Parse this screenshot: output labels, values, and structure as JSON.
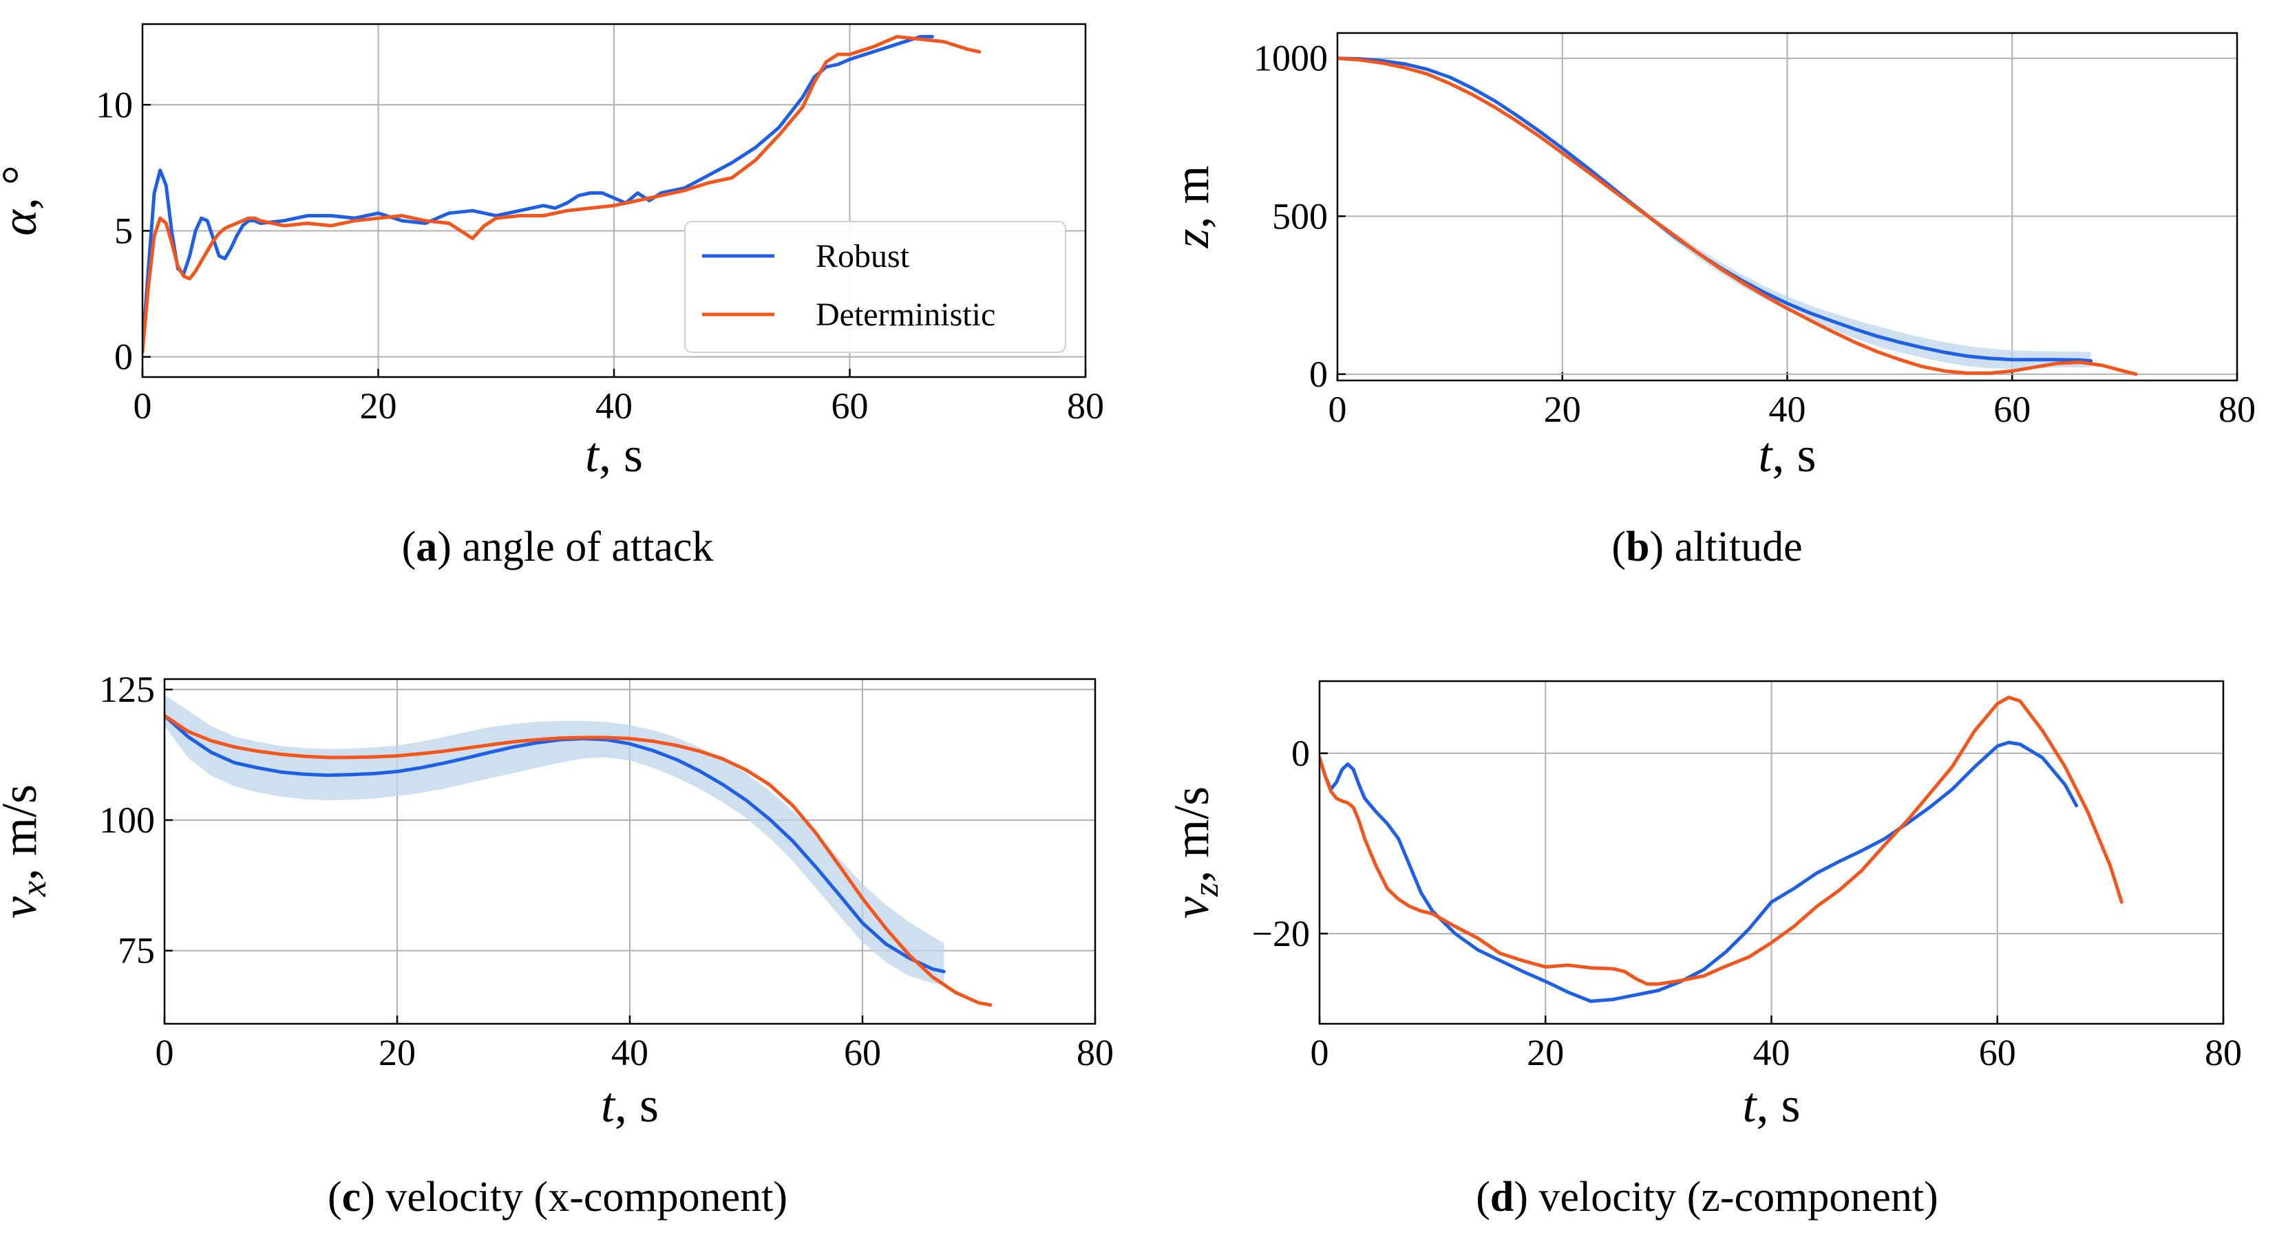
{
  "colors": {
    "robust": "#1f5fe6",
    "deterministic": "#f2561d",
    "band": "#bdd5ea",
    "grid": "#b0b0b0"
  },
  "legend": {
    "robust": "Robust",
    "deterministic": "Deterministic"
  },
  "panels": [
    {
      "id": "a",
      "caption_letter": "a",
      "caption_text": "angle of attack",
      "xlabel_sym": "t",
      "xlabel_unit": ", s",
      "ylabel_sym": "α",
      "ylabel_unit": ", °",
      "xticks": [
        "0",
        "20",
        "40",
        "60",
        "80"
      ],
      "yticks": [
        "0",
        "5",
        "10"
      ],
      "show_legend": true
    },
    {
      "id": "b",
      "caption_letter": "b",
      "caption_text": "altitude",
      "xlabel_sym": "t",
      "xlabel_unit": ", s",
      "ylabel_sym": "z",
      "ylabel_unit": ", m",
      "xticks": [
        "0",
        "20",
        "40",
        "60",
        "80"
      ],
      "yticks": [
        "0",
        "500",
        "1000"
      ],
      "show_legend": false
    },
    {
      "id": "c",
      "caption_letter": "c",
      "caption_text": "velocity (x-component)",
      "xlabel_sym": "t",
      "xlabel_unit": ", s",
      "ylabel_sym": "v",
      "ylabel_sub": "x",
      "ylabel_unit": ", m/s",
      "xticks": [
        "0",
        "20",
        "40",
        "60",
        "80"
      ],
      "yticks": [
        "75",
        "100",
        "125"
      ],
      "show_legend": false
    },
    {
      "id": "d",
      "caption_letter": "d",
      "caption_text": "velocity (z-component)",
      "xlabel_sym": "t",
      "xlabel_unit": ", s",
      "ylabel_sym": "v",
      "ylabel_sub": "z",
      "ylabel_unit": ", m/s",
      "xticks": [
        "0",
        "20",
        "40",
        "60",
        "80"
      ],
      "yticks": [
        "−20",
        "0"
      ],
      "show_legend": false
    }
  ],
  "chart_data": [
    {
      "panel": "a",
      "type": "line",
      "title": "angle of attack",
      "xlabel": "t, s",
      "ylabel": "α, °",
      "xlim": [
        0,
        80
      ],
      "ylim": [
        -0.8,
        13.2
      ],
      "xticks": [
        0,
        20,
        40,
        60,
        80
      ],
      "yticks": [
        0,
        5,
        10
      ],
      "grid": true,
      "legend_position": "lower-right",
      "series": [
        {
          "name": "Robust",
          "x": [
            0,
            0.5,
            1,
            1.5,
            2,
            2.5,
            3,
            3.5,
            4,
            4.5,
            5,
            5.5,
            6,
            6.5,
            7,
            7.5,
            8,
            8.5,
            9,
            9.5,
            10,
            12,
            14,
            16,
            18,
            20,
            22,
            24,
            26,
            28,
            30,
            32,
            34,
            35,
            36,
            37,
            38,
            39,
            40,
            41,
            42,
            43,
            44,
            46,
            48,
            50,
            52,
            54,
            56,
            57,
            58,
            59,
            60,
            62,
            64,
            66,
            67
          ],
          "y": [
            0.3,
            3.5,
            6.5,
            7.4,
            6.8,
            4.9,
            3.5,
            3.3,
            4.0,
            5.0,
            5.5,
            5.4,
            4.7,
            4.0,
            3.9,
            4.3,
            4.8,
            5.2,
            5.4,
            5.4,
            5.3,
            5.4,
            5.6,
            5.6,
            5.5,
            5.7,
            5.4,
            5.3,
            5.7,
            5.8,
            5.6,
            5.8,
            6.0,
            5.9,
            6.1,
            6.4,
            6.5,
            6.5,
            6.3,
            6.1,
            6.5,
            6.2,
            6.5,
            6.7,
            7.2,
            7.7,
            8.3,
            9.1,
            10.3,
            11.1,
            11.5,
            11.6,
            11.8,
            12.1,
            12.4,
            12.7,
            12.7
          ]
        },
        {
          "name": "Deterministic",
          "x": [
            0,
            0.5,
            1,
            1.5,
            2,
            2.5,
            3,
            3.5,
            4,
            4.5,
            5,
            5.5,
            6,
            6.5,
            7,
            7.5,
            8,
            8.5,
            9,
            9.5,
            10,
            12,
            14,
            16,
            18,
            20,
            22,
            24,
            26,
            27,
            28,
            29,
            30,
            32,
            34,
            36,
            38,
            40,
            42,
            44,
            46,
            48,
            50,
            52,
            54,
            56,
            57,
            58,
            59,
            60,
            62,
            64,
            66,
            68,
            70,
            71
          ],
          "y": [
            0.2,
            2.8,
            4.8,
            5.5,
            5.3,
            4.5,
            3.6,
            3.2,
            3.1,
            3.4,
            3.8,
            4.2,
            4.6,
            4.9,
            5.1,
            5.2,
            5.3,
            5.4,
            5.5,
            5.5,
            5.4,
            5.2,
            5.3,
            5.2,
            5.4,
            5.5,
            5.6,
            5.4,
            5.3,
            5.0,
            4.7,
            5.2,
            5.5,
            5.6,
            5.6,
            5.8,
            5.9,
            6.0,
            6.2,
            6.4,
            6.6,
            6.9,
            7.1,
            7.8,
            8.8,
            9.9,
            10.9,
            11.7,
            12.0,
            12.0,
            12.3,
            12.7,
            12.6,
            12.5,
            12.2,
            12.1
          ]
        }
      ]
    },
    {
      "panel": "b",
      "type": "line",
      "title": "altitude",
      "xlabel": "t, s",
      "ylabel": "z, m",
      "xlim": [
        0,
        80
      ],
      "ylim": [
        -20,
        1080
      ],
      "xticks": [
        0,
        20,
        40,
        60,
        80
      ],
      "yticks": [
        0,
        500,
        1000
      ],
      "grid": true,
      "series": [
        {
          "name": "Robust",
          "x": [
            0,
            2,
            4,
            6,
            8,
            10,
            12,
            14,
            16,
            18,
            20,
            22,
            24,
            26,
            28,
            30,
            32,
            34,
            36,
            38,
            40,
            42,
            44,
            46,
            48,
            50,
            52,
            54,
            56,
            58,
            60,
            62,
            64,
            66,
            67
          ],
          "y": [
            1000,
            998,
            992,
            982,
            965,
            940,
            905,
            865,
            818,
            768,
            715,
            660,
            603,
            545,
            490,
            435,
            385,
            338,
            296,
            258,
            224,
            194,
            168,
            143,
            120,
            101,
            84,
            69,
            57,
            50,
            46,
            46,
            46,
            45,
            42
          ],
          "band_upper": [
            1000,
            999,
            994,
            985,
            968,
            944,
            910,
            870,
            825,
            775,
            722,
            668,
            612,
            555,
            500,
            448,
            400,
            355,
            315,
            278,
            246,
            218,
            194,
            172,
            152,
            133,
            116,
            101,
            89,
            81,
            75,
            73,
            72,
            71,
            70
          ],
          "band_lower": [
            1000,
            997,
            990,
            979,
            962,
            936,
            900,
            860,
            811,
            761,
            708,
            652,
            594,
            535,
            480,
            422,
            370,
            321,
            277,
            238,
            202,
            170,
            142,
            114,
            88,
            69,
            52,
            37,
            25,
            19,
            17,
            19,
            21,
            22,
            22
          ]
        },
        {
          "name": "Deterministic",
          "x": [
            0,
            2,
            4,
            6,
            8,
            10,
            12,
            14,
            16,
            18,
            20,
            22,
            24,
            26,
            28,
            30,
            32,
            34,
            36,
            38,
            40,
            42,
            44,
            46,
            48,
            50,
            52,
            54,
            56,
            58,
            60,
            62,
            64,
            66,
            68,
            70,
            71
          ],
          "y": [
            1000,
            995,
            985,
            970,
            950,
            920,
            885,
            845,
            800,
            752,
            700,
            648,
            595,
            542,
            490,
            438,
            385,
            335,
            290,
            248,
            208,
            171,
            135,
            101,
            71,
            46,
            24,
            10,
            3,
            3,
            10,
            22,
            34,
            38,
            28,
            9,
            0
          ]
        }
      ]
    },
    {
      "panel": "c",
      "type": "line",
      "title": "velocity (x-component)",
      "xlabel": "t, s",
      "ylabel": "vx, m/s",
      "xlim": [
        0,
        80
      ],
      "ylim": [
        61,
        127
      ],
      "xticks": [
        0,
        20,
        40,
        60,
        80
      ],
      "yticks": [
        75,
        100,
        125
      ],
      "grid": true,
      "series": [
        {
          "name": "Robust",
          "x": [
            0,
            2,
            4,
            6,
            8,
            10,
            12,
            14,
            16,
            18,
            20,
            22,
            24,
            26,
            28,
            30,
            32,
            34,
            36,
            38,
            40,
            42,
            44,
            46,
            48,
            50,
            52,
            54,
            56,
            58,
            60,
            62,
            64,
            66,
            67
          ],
          "y": [
            120,
            116,
            113,
            111,
            110,
            109.2,
            108.8,
            108.6,
            108.7,
            108.9,
            109.3,
            110,
            110.9,
            111.9,
            113,
            114,
            114.8,
            115.4,
            115.6,
            115.4,
            114.6,
            113.3,
            111.6,
            109.4,
            106.8,
            103.8,
            100.2,
            96,
            91,
            85.7,
            80.3,
            76.3,
            73.6,
            71.5,
            71
          ],
          "band_upper": [
            124,
            121,
            118,
            116,
            115,
            114.2,
            113.8,
            113.6,
            113.7,
            113.9,
            114.3,
            115,
            115.9,
            116.9,
            117.8,
            118.4,
            118.8,
            119,
            119,
            118.8,
            118.2,
            117.2,
            115.8,
            113.9,
            111.6,
            108.9,
            105.6,
            101.8,
            97.4,
            92.6,
            87.8,
            83.8,
            80.5,
            77.7,
            76.5
          ],
          "band_lower": [
            118,
            112,
            108.5,
            106.5,
            105.3,
            104.5,
            104,
            103.8,
            103.9,
            104.1,
            104.6,
            105.2,
            106,
            107,
            108,
            109,
            110,
            111,
            111.8,
            112,
            111.4,
            110,
            108.2,
            106,
            103.4,
            100.4,
            96.6,
            92.2,
            87,
            81.7,
            76.6,
            72.8,
            70.2,
            68.8,
            68.5
          ]
        },
        {
          "name": "Deterministic",
          "x": [
            0,
            2,
            4,
            6,
            8,
            10,
            12,
            14,
            16,
            18,
            20,
            22,
            24,
            26,
            28,
            30,
            32,
            34,
            36,
            38,
            40,
            42,
            44,
            46,
            48,
            50,
            52,
            54,
            56,
            58,
            60,
            62,
            64,
            66,
            68,
            70,
            71
          ],
          "y": [
            120,
            117,
            115.2,
            114,
            113.2,
            112.6,
            112.2,
            112,
            112,
            112.1,
            112.3,
            112.7,
            113.2,
            113.8,
            114.4,
            115,
            115.4,
            115.7,
            115.8,
            115.8,
            115.6,
            115.1,
            114.3,
            113.2,
            111.7,
            109.6,
            106.8,
            102.8,
            97.5,
            91.3,
            85,
            79.3,
            74.2,
            70,
            67,
            65,
            64.6
          ]
        }
      ]
    },
    {
      "panel": "d",
      "type": "line",
      "title": "velocity (z-component)",
      "xlabel": "t, s",
      "ylabel": "vz, m/s",
      "xlim": [
        0,
        80
      ],
      "ylim": [
        -30,
        8
      ],
      "xticks": [
        0,
        20,
        40,
        60,
        80
      ],
      "yticks": [
        -20,
        0
      ],
      "grid": true,
      "series": [
        {
          "name": "Robust",
          "x": [
            0,
            0.5,
            1,
            1.5,
            2,
            2.5,
            3,
            3.5,
            4,
            5,
            6,
            7,
            8,
            9,
            10,
            12,
            14,
            16,
            18,
            20,
            22,
            24,
            26,
            28,
            30,
            32,
            34,
            36,
            38,
            40,
            42,
            44,
            46,
            48,
            50,
            52,
            54,
            56,
            58,
            60,
            61,
            62,
            64,
            66,
            67
          ],
          "y": [
            -0.5,
            -2.5,
            -4,
            -3.2,
            -1.8,
            -1.2,
            -1.8,
            -3.5,
            -5,
            -6.5,
            -7.8,
            -9.5,
            -12.5,
            -15.5,
            -17.5,
            -20,
            -21.8,
            -23,
            -24.2,
            -25.3,
            -26.5,
            -27.5,
            -27.3,
            -26.8,
            -26.3,
            -25.3,
            -24,
            -22,
            -19.5,
            -16.5,
            -15,
            -13.3,
            -12,
            -10.8,
            -9.5,
            -7.8,
            -6,
            -4,
            -1.5,
            0.8,
            1.2,
            1.0,
            -0.5,
            -3.5,
            -5.8
          ]
        },
        {
          "name": "Deterministic",
          "x": [
            0,
            0.5,
            1,
            1.5,
            2,
            2.5,
            3,
            3.5,
            4,
            5,
            6,
            7,
            8,
            9,
            10,
            12,
            14,
            16,
            18,
            20,
            22,
            24,
            26,
            27,
            28,
            29,
            30,
            32,
            34,
            36,
            38,
            40,
            42,
            44,
            46,
            48,
            50,
            52,
            54,
            56,
            58,
            60,
            61,
            62,
            64,
            66,
            68,
            70,
            71
          ],
          "y": [
            -0.5,
            -2.5,
            -4.2,
            -5,
            -5.3,
            -5.5,
            -6,
            -7.5,
            -9.5,
            -12.5,
            -15,
            -16.2,
            -17,
            -17.5,
            -17.8,
            -19.2,
            -20.5,
            -22.2,
            -23,
            -23.7,
            -23.5,
            -23.8,
            -23.9,
            -24.2,
            -25,
            -25.6,
            -25.6,
            -25.2,
            -24.7,
            -23.6,
            -22.6,
            -21,
            -19.2,
            -17,
            -15.2,
            -13,
            -10.2,
            -7.5,
            -4.5,
            -1.5,
            2.5,
            5.5,
            6.2,
            5.8,
            2.5,
            -1.5,
            -6.5,
            -12.5,
            -16.5
          ]
        }
      ]
    }
  ]
}
